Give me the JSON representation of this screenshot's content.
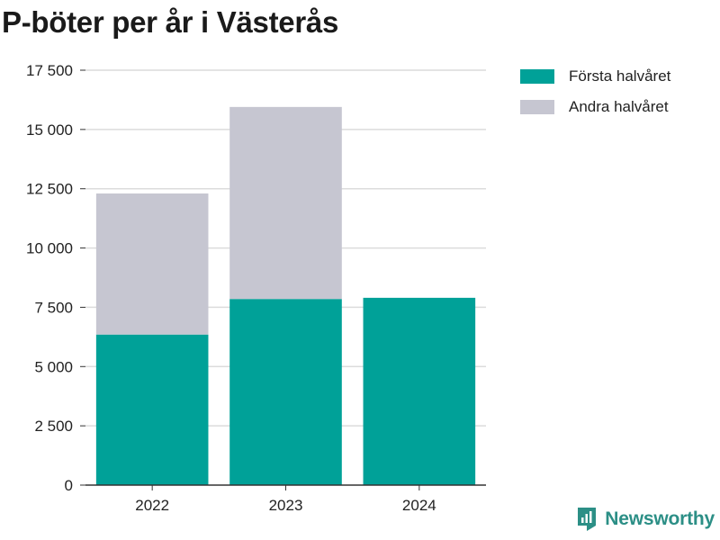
{
  "title": "P-böter per år i Västerås",
  "brand": {
    "name": "Newsworthy",
    "icon": "bar-chart-flag-icon"
  },
  "colors": {
    "first": "#00a198",
    "second": "#c6c6d1",
    "grid": "#dcdcdc",
    "axis": "#333333",
    "brand": "#2c8f86"
  },
  "chart_data": {
    "type": "bar",
    "stacked": true,
    "categories": [
      "2022",
      "2023",
      "2024"
    ],
    "series": [
      {
        "name": "Första halvåret",
        "values": [
          6350,
          7850,
          7900
        ]
      },
      {
        "name": "Andra halvåret",
        "values": [
          5950,
          8100,
          0
        ]
      }
    ],
    "ylim": [
      0,
      17500
    ],
    "yticks": [
      0,
      2500,
      5000,
      7500,
      10000,
      12500,
      15000,
      17500
    ],
    "ytick_labels": [
      "0",
      "2 500",
      "5 000",
      "7 500",
      "10 000",
      "12 500",
      "15 000",
      "17 500"
    ],
    "grid": true,
    "legend_position": "top-right"
  }
}
